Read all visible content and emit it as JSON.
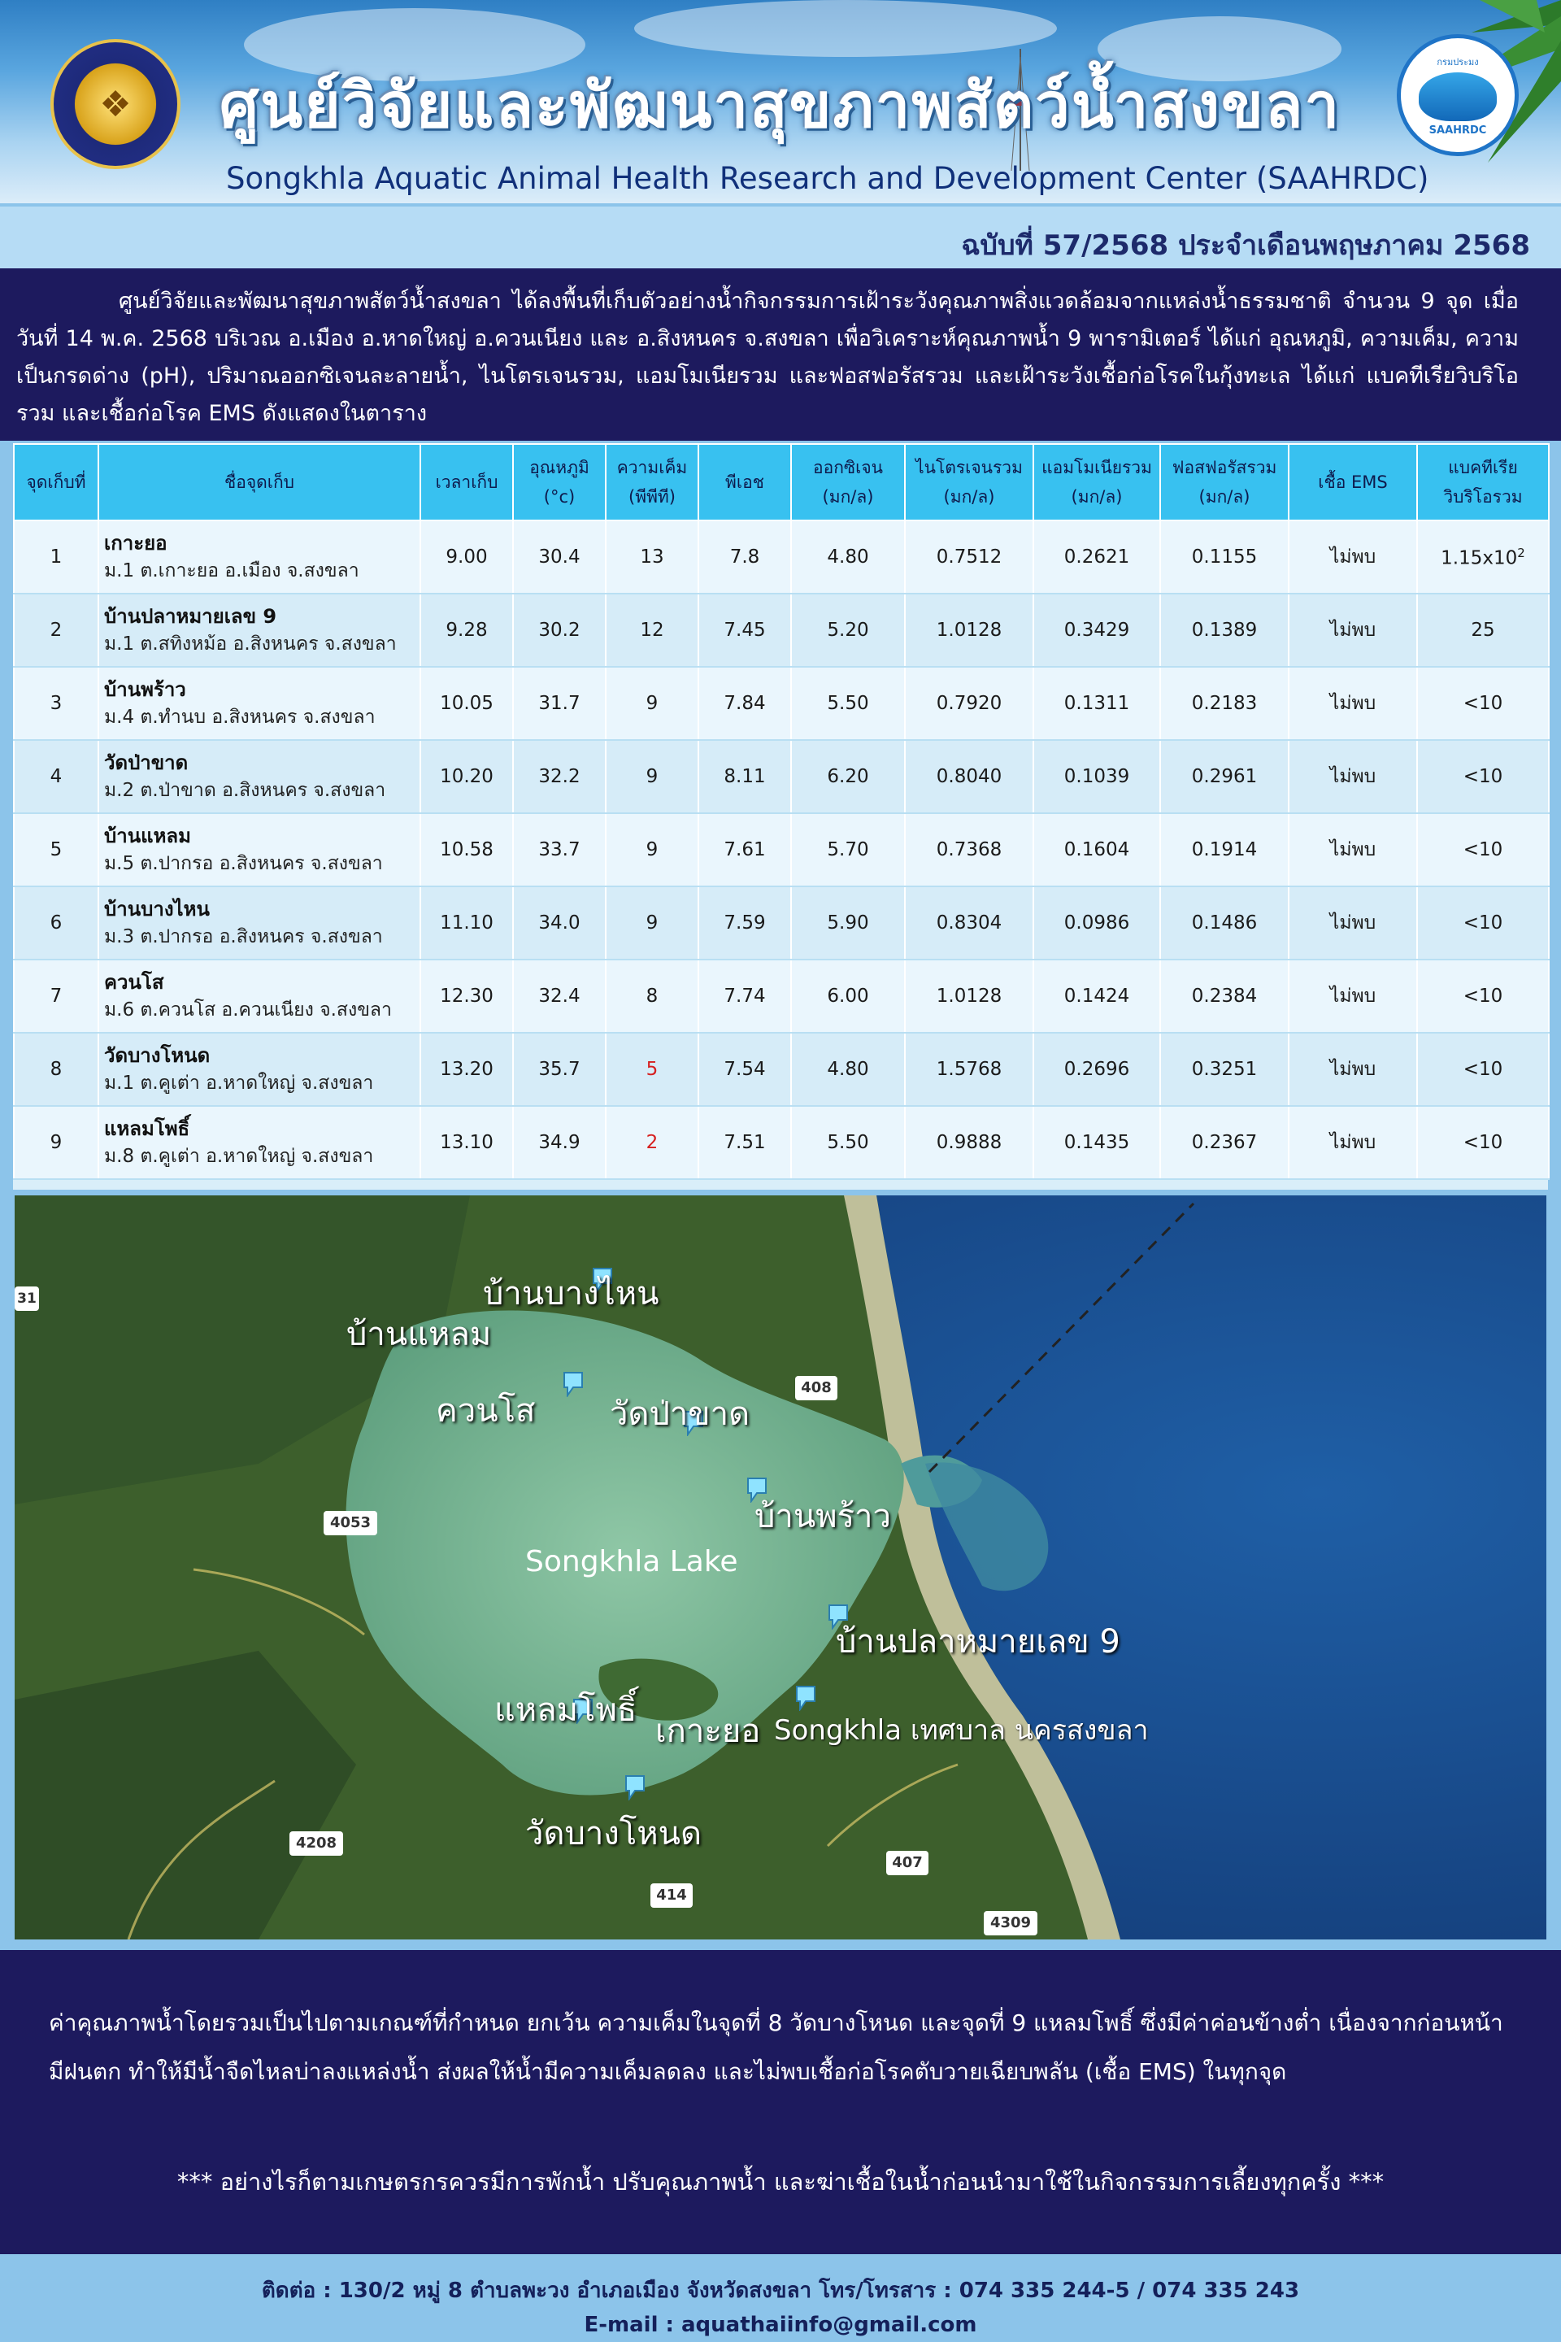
{
  "header": {
    "title_th": "ศูนย์วิจัยและพัฒนาสุขภาพสัตว์น้ำสงขลา",
    "title_en": "Songkhla Aquatic Animal Health Research and Development Center (SAAHRDC)",
    "logo_left_text": "กรมประมง",
    "logo_right_top": "กรมประมง",
    "logo_right_label": "SAAHRDC"
  },
  "issue": "ฉบับที่ 57/2568 ประจำเดือนพฤษภาคม 2568",
  "intro": "ศูนย์วิจัยและพัฒนาสุขภาพสัตว์น้ำสงขลา ได้ลงพื้นที่เก็บตัวอย่างน้ำกิจกรรมการเฝ้าระวังคุณภาพสิ่งแวดล้อมจากแหล่งน้ำธรรมชาติ จำนวน 9 จุด เมื่อวันที่ 14 พ.ค. 2568 บริเวณ อ.เมือง อ.หาดใหญ่ อ.ควนเนียง และ อ.สิงหนคร จ.สงขลา เพื่อวิเคราะห์คุณภาพน้ำ 9 พารามิเตอร์ ได้แก่ อุณหภูมิ, ความเค็ม, ความเป็นกรดด่าง (pH), ปริมาณออกซิเจนละลายน้ำ, ไนโตรเจนรวม, แอมโมเนียรวม และฟอสฟอรัสรวม และเฝ้าระวังเชื้อก่อโรคในกุ้งทะเล ได้แก่ แบคทีเรียวิบริโอรวม  และเชื้อก่อโรค EMS ดังแสดงในตาราง",
  "table": {
    "headers": {
      "no": "จุดเก็บที่",
      "name": "ชื่อจุดเก็บ",
      "time": "เวลาเก็บ",
      "temp_1": "อุณหภูมิ",
      "temp_2": "(°c)",
      "sal_1": "ความเค็ม",
      "sal_2": "(พีพีที)",
      "ph": "พีเอช",
      "do_1": "ออกซิเจน",
      "do_2": "(มก/ล)",
      "tn_1": "ไนโตรเจนรวม",
      "tn_2": "(มก/ล)",
      "ta_1": "แอมโมเนียรวม",
      "ta_2": "(มก/ล)",
      "tp_1": "ฟอสฟอรัสรวม",
      "tp_2": "(มก/ล)",
      "ems": "เชื้อ EMS",
      "vib_1": "แบคทีเรีย",
      "vib_2": "วิบริโอรวม"
    },
    "rows": [
      {
        "no": "1",
        "name": "เกาะยอ",
        "addr": "ม.1 ต.เกาะยอ อ.เมือง จ.สงขลา",
        "time": "9.00",
        "temp": "30.4",
        "sal": "13",
        "ph": "7.8",
        "do": "4.80",
        "tn": "0.7512",
        "ta": "0.2621",
        "tp": "0.1155",
        "ems": "ไม่พบ",
        "vib": "1.15x10",
        "vib_sup": "2"
      },
      {
        "no": "2",
        "name": "บ้านปลาหมายเลข 9",
        "addr": "ม.1 ต.สทิงหม้อ อ.สิงหนคร จ.สงขลา",
        "time": "9.28",
        "temp": "30.2",
        "sal": "12",
        "ph": "7.45",
        "do": "5.20",
        "tn": "1.0128",
        "ta": "0.3429",
        "tp": "0.1389",
        "ems": "ไม่พบ",
        "vib": "25",
        "vib_sup": ""
      },
      {
        "no": "3",
        "name": "บ้านพร้าว",
        "addr": "ม.4 ต.ทำนบ อ.สิงหนคร จ.สงขลา",
        "time": "10.05",
        "temp": "31.7",
        "sal": "9",
        "ph": "7.84",
        "do": "5.50",
        "tn": "0.7920",
        "ta": "0.1311",
        "tp": "0.2183",
        "ems": "ไม่พบ",
        "vib": "<10",
        "vib_sup": ""
      },
      {
        "no": "4",
        "name": "วัดป่าขาด",
        "addr": "ม.2 ต.ป่าขาด อ.สิงหนคร จ.สงขลา",
        "time": "10.20",
        "temp": "32.2",
        "sal": "9",
        "ph": "8.11",
        "do": "6.20",
        "tn": "0.8040",
        "ta": "0.1039",
        "tp": "0.2961",
        "ems": "ไม่พบ",
        "vib": "<10",
        "vib_sup": ""
      },
      {
        "no": "5",
        "name": "บ้านแหลม",
        "addr": "ม.5 ต.ปากรอ อ.สิงหนคร จ.สงขลา",
        "time": "10.58",
        "temp": "33.7",
        "sal": "9",
        "ph": "7.61",
        "do": "5.70",
        "tn": "0.7368",
        "ta": "0.1604",
        "tp": "0.1914",
        "ems": "ไม่พบ",
        "vib": "<10",
        "vib_sup": ""
      },
      {
        "no": "6",
        "name": "บ้านบางไหน",
        "addr": "ม.3 ต.ปากรอ อ.สิงหนคร จ.สงขลา",
        "time": "11.10",
        "temp": "34.0",
        "sal": "9",
        "ph": "7.59",
        "do": "5.90",
        "tn": "0.8304",
        "ta": "0.0986",
        "tp": "0.1486",
        "ems": "ไม่พบ",
        "vib": "<10",
        "vib_sup": ""
      },
      {
        "no": "7",
        "name": "ควนโส",
        "addr": "ม.6 ต.ควนโส อ.ควนเนียง จ.สงขลา",
        "time": "12.30",
        "temp": "32.4",
        "sal": "8",
        "ph": "7.74",
        "do": "6.00",
        "tn": "1.0128",
        "ta": "0.1424",
        "tp": "0.2384",
        "ems": "ไม่พบ",
        "vib": "<10",
        "vib_sup": ""
      },
      {
        "no": "8",
        "name": "วัดบางโหนด",
        "addr": "ม.1 ต.คูเต่า อ.หาดใหญ่ จ.สงขลา",
        "time": "13.20",
        "temp": "35.7",
        "sal": "5",
        "sal_red": true,
        "ph": "7.54",
        "do": "4.80",
        "tn": "1.5768",
        "ta": "0.2696",
        "tp": "0.3251",
        "ems": "ไม่พบ",
        "vib": "<10",
        "vib_sup": ""
      },
      {
        "no": "9",
        "name": "แหลมโพธิ์",
        "addr": "ม.8 ต.คูเต่า อ.หาดใหญ่ จ.สงขลา",
        "time": "13.10",
        "temp": "34.9",
        "sal": "2",
        "sal_red": true,
        "ph": "7.51",
        "do": "5.50",
        "tn": "0.9888",
        "ta": "0.1435",
        "tp": "0.2367",
        "ems": "ไม่พบ",
        "vib": "<10",
        "vib_sup": ""
      }
    ]
  },
  "map": {
    "lake_label": "Songkhla Lake",
    "city_label": "Songkhla เทศบาล นครสงขลา",
    "markers": {
      "bang_nai": "บ้านบางไหน",
      "ban_laem": "บ้านแหลม",
      "khuan_so": "ควนโส",
      "pa_khat": "วัดป่าขาด",
      "ban_phrao": "บ้านพร้าว",
      "ban_pla": "บ้านปลาหมายเลข 9",
      "laem_pho": "แหลมโพธิ์",
      "ko_yo": "เกาะยอ",
      "bang_not": "วัดบางโหนด"
    },
    "roads": {
      "r408": "408",
      "r4053": "4053",
      "r4208": "4208",
      "r407": "407",
      "r414": "414",
      "r4309": "4309",
      "r31": "31"
    }
  },
  "summary": {
    "text": "ค่าคุณภาพน้ำโดยรวมเป็นไปตามเกณฑ์ที่กำหนด ยกเว้น ความเค็มในจุดที่ 8 วัดบางโหนด และจุดที่ 9 แหลมโพธิ์ ซึ่งมีค่าค่อนข้างต่ำ เนื่องจากก่อนหน้ามีฝนตก ทำให้มีน้ำจืดไหลบ่าลงแหล่งน้ำ ส่งผลให้น้ำมีความเค็มลดลง และไม่พบเชื้อก่อโรคตับวายเฉียบพลัน (เชื้อ EMS) ในทุกจุด",
    "warning": "*** อย่างไรก็ตามเกษตรกรควรมีการพักน้ำ ปรับคุณภาพน้ำ และฆ่าเชื้อในน้ำก่อนนำมาใช้ในกิจกรรมการเลี้ยงทุกครั้ง ***"
  },
  "footer": {
    "contact": "ติดต่อ : 130/2 หมู่ 8 ตำบลพะวง อำเภอเมือง จังหวัดสงขลา โทร/โทรสาร : 074 335 244-5 / 074 335 243",
    "email": "E-mail : aquathaiinfo@gmail.com"
  }
}
